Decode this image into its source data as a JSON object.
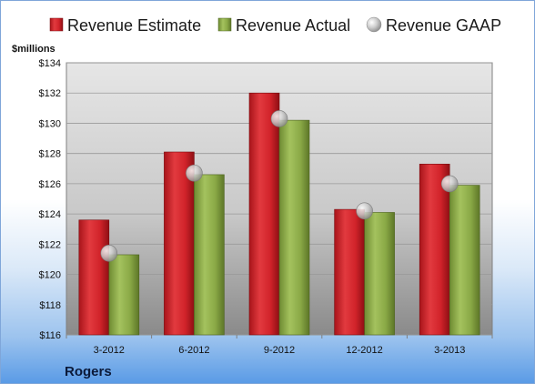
{
  "chart_data": {
    "type": "bar",
    "title": "",
    "ylabel": "$millions",
    "xlabel": "",
    "company": "Rogers",
    "categories": [
      "3-2012",
      "6-2012",
      "9-2012",
      "12-2012",
      "3-2013"
    ],
    "series": [
      {
        "name": "Revenue Estimate",
        "kind": "bar",
        "color": "#d7262c",
        "values": [
          123.6,
          128.1,
          132.0,
          124.3,
          127.3
        ]
      },
      {
        "name": "Revenue Actual",
        "kind": "bar",
        "color": "#8fb04a",
        "values": [
          121.3,
          126.6,
          130.2,
          124.1,
          125.9
        ]
      },
      {
        "name": "Revenue GAAP",
        "kind": "marker",
        "color": "#c8c8c8",
        "values": [
          121.4,
          126.7,
          130.3,
          124.2,
          126.0
        ]
      }
    ],
    "ylim": [
      116,
      134
    ],
    "yticks": [
      "$116",
      "$118",
      "$120",
      "$122",
      "$124",
      "$126",
      "$128",
      "$130",
      "$132",
      "$134"
    ],
    "grid": true,
    "legend_position": "top"
  }
}
